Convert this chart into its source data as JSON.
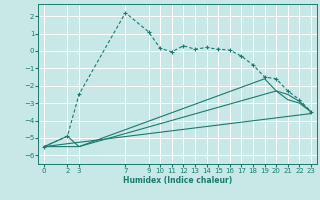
{
  "title": "",
  "xlabel": "Humidex (Indice chaleur)",
  "bg_color": "#c8e8e8",
  "grid_color": "#ffffff",
  "line_color": "#1a7a6e",
  "xlim": [
    -0.5,
    23.5
  ],
  "ylim": [
    -6.5,
    2.7
  ],
  "xticks": [
    0,
    2,
    3,
    7,
    9,
    10,
    11,
    12,
    13,
    14,
    15,
    16,
    17,
    18,
    19,
    20,
    21,
    22,
    23
  ],
  "yticks": [
    -6,
    -5,
    -4,
    -3,
    -2,
    -1,
    0,
    1,
    2
  ],
  "line1_x": [
    0,
    2,
    3,
    7,
    9,
    10,
    11,
    12,
    13,
    14,
    15,
    16,
    17,
    18,
    19,
    20,
    21,
    22,
    23
  ],
  "line1_y": [
    -5.5,
    -4.9,
    -2.5,
    2.2,
    1.1,
    0.15,
    -0.05,
    0.3,
    0.1,
    0.2,
    0.1,
    0.05,
    -0.3,
    -0.8,
    -1.5,
    -1.6,
    -2.3,
    -2.8,
    -3.5
  ],
  "line2_x": [
    0,
    2,
    3,
    19,
    20,
    21,
    22,
    23
  ],
  "line2_y": [
    -5.5,
    -4.9,
    -5.5,
    -1.6,
    -2.3,
    -2.8,
    -3.0,
    -3.5
  ],
  "line3_x": [
    0,
    3,
    20,
    21,
    22,
    23
  ],
  "line3_y": [
    -5.5,
    -5.5,
    -2.3,
    -2.5,
    -2.9,
    -3.5
  ],
  "line4_x": [
    0,
    23
  ],
  "line4_y": [
    -5.5,
    -3.6
  ]
}
